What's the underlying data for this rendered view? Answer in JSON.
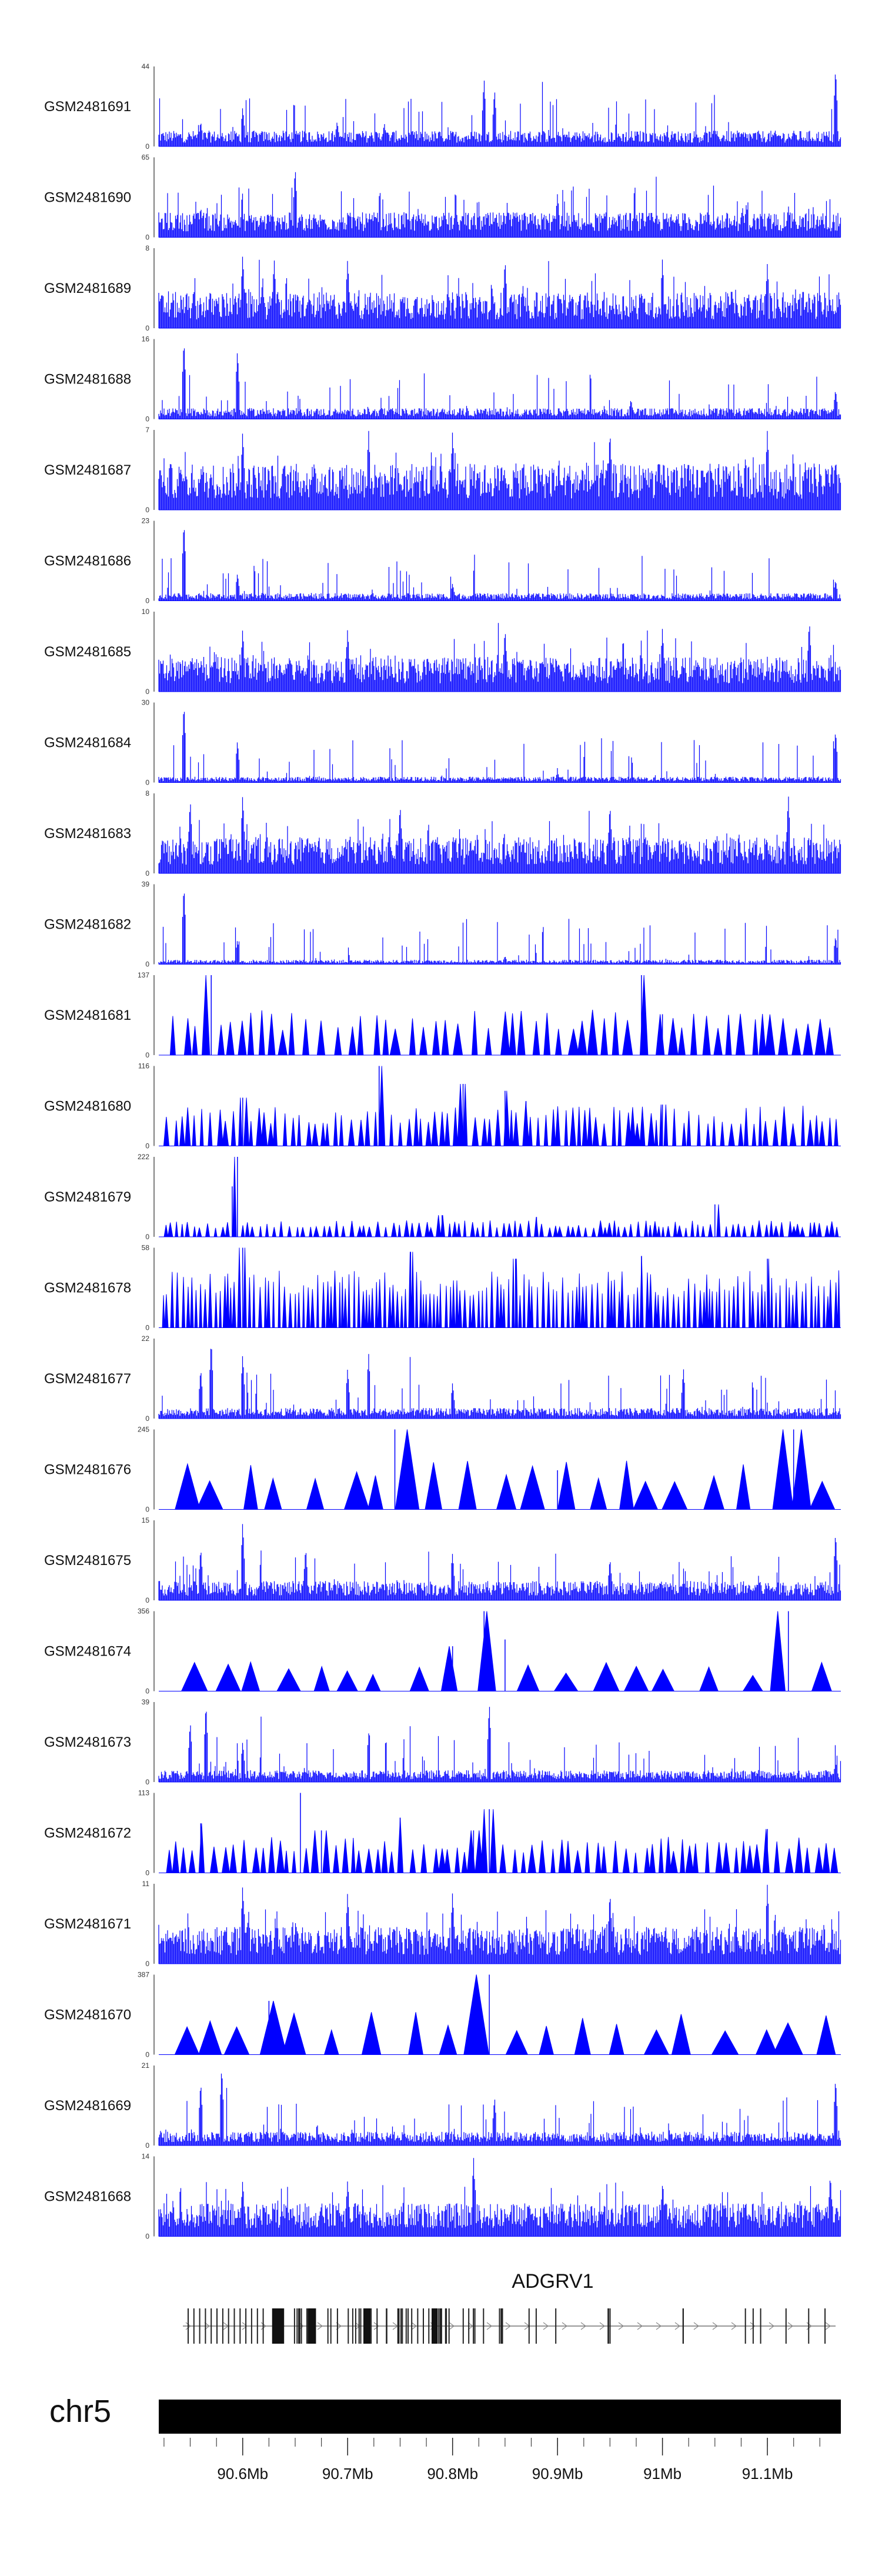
{
  "chart_data": {
    "type": "area",
    "title": "",
    "region": {
      "start": 90.52,
      "end": 91.17,
      "unit": "Mb"
    },
    "colors": {
      "signal": "#0000ff",
      "gene": "#555555",
      "ideogram": "#000000"
    },
    "tracks": [
      {
        "name": "GSM2481691",
        "ymax": 44,
        "style": "dense",
        "base": 6,
        "peaks": [
          [
            90.56,
            14
          ],
          [
            90.6,
            22
          ],
          [
            90.69,
            14
          ],
          [
            90.735,
            13
          ],
          [
            90.83,
            38
          ],
          [
            90.84,
            32
          ],
          [
            91.165,
            44
          ]
        ]
      },
      {
        "name": "GSM2481690",
        "ymax": 65,
        "style": "dense",
        "base": 14,
        "peaks": [
          [
            90.56,
            25
          ],
          [
            90.65,
            58
          ],
          [
            90.9,
            36
          ],
          [
            91.08,
            28
          ],
          [
            91.12,
            26
          ]
        ]
      },
      {
        "name": "GSM2481689",
        "ymax": 8,
        "style": "dense",
        "base": 2.5,
        "peaks": [
          [
            90.6,
            7.5
          ],
          [
            90.63,
            7
          ],
          [
            90.7,
            7
          ],
          [
            90.85,
            7
          ],
          [
            91.0,
            7
          ],
          [
            91.1,
            6.5
          ]
        ]
      },
      {
        "name": "GSM2481688",
        "ymax": 16,
        "style": "dense",
        "base": 1.5,
        "peaks": [
          [
            90.544,
            16
          ],
          [
            90.595,
            14
          ],
          [
            90.97,
            4
          ],
          [
            91.165,
            6
          ]
        ]
      },
      {
        "name": "GSM2481687",
        "ymax": 7,
        "style": "dense",
        "base": 2.8,
        "peaks": [
          [
            90.6,
            7
          ],
          [
            90.72,
            7
          ],
          [
            90.8,
            7
          ],
          [
            90.95,
            7
          ],
          [
            91.1,
            7
          ]
        ]
      },
      {
        "name": "GSM2481686",
        "ymax": 23,
        "style": "dense",
        "base": 1.5,
        "peaks": [
          [
            90.544,
            23
          ],
          [
            90.595,
            8
          ],
          [
            90.8,
            5
          ],
          [
            91.165,
            6
          ]
        ]
      },
      {
        "name": "GSM2481685",
        "ymax": 10,
        "style": "dense",
        "base": 3,
        "peaks": [
          [
            90.6,
            8
          ],
          [
            90.7,
            8
          ],
          [
            90.85,
            8
          ],
          [
            91.0,
            8
          ],
          [
            91.14,
            9
          ]
        ]
      },
      {
        "name": "GSM2481684",
        "ymax": 30,
        "style": "dense",
        "base": 1.5,
        "peaks": [
          [
            90.544,
            30
          ],
          [
            90.595,
            16
          ],
          [
            90.9,
            4
          ],
          [
            91.165,
            20
          ]
        ]
      },
      {
        "name": "GSM2481683",
        "ymax": 8,
        "style": "dense",
        "base": 2.5,
        "peaks": [
          [
            90.55,
            7.5
          ],
          [
            90.6,
            8
          ],
          [
            90.75,
            7
          ],
          [
            90.95,
            7
          ],
          [
            91.12,
            8
          ]
        ]
      },
      {
        "name": "GSM2481682",
        "ymax": 39,
        "style": "dense",
        "base": 1.5,
        "peaks": [
          [
            90.544,
            39
          ],
          [
            90.595,
            12
          ],
          [
            90.85,
            4
          ],
          [
            91.165,
            14
          ]
        ]
      },
      {
        "name": "GSM2481681",
        "ymax": 137,
        "style": "sparse",
        "base": 60,
        "spacing": 0.011,
        "peaks": [
          [
            90.565,
            125
          ],
          [
            90.57,
            137
          ],
          [
            90.98,
            137
          ],
          [
            91.0,
            70
          ]
        ]
      },
      {
        "name": "GSM2481680",
        "ymax": 116,
        "style": "sparse",
        "base": 45,
        "spacing": 0.0065,
        "peaks": [
          [
            90.6,
            70
          ],
          [
            90.73,
            116
          ],
          [
            90.81,
            90
          ],
          [
            90.85,
            80
          ],
          [
            90.87,
            65
          ],
          [
            91.0,
            60
          ]
        ]
      },
      {
        "name": "GSM2481679",
        "ymax": 222,
        "style": "sparse",
        "base": 35,
        "spacing": 0.0055,
        "peaks": [
          [
            90.595,
            222
          ],
          [
            90.59,
            140
          ],
          [
            90.79,
            60
          ],
          [
            90.88,
            55
          ],
          [
            91.05,
            90
          ]
        ]
      },
      {
        "name": "GSM2481678",
        "ymax": 58,
        "style": "sparse",
        "base": 32,
        "spacing": 0.004,
        "peaks": [
          [
            90.6,
            58
          ],
          [
            90.76,
            55
          ],
          [
            90.86,
            50
          ],
          [
            90.98,
            52
          ],
          [
            91.1,
            50
          ]
        ]
      },
      {
        "name": "GSM2481677",
        "ymax": 22,
        "style": "dense",
        "base": 2,
        "peaks": [
          [
            90.56,
            14
          ],
          [
            90.57,
            22
          ],
          [
            90.6,
            18
          ],
          [
            90.7,
            14
          ],
          [
            90.72,
            18
          ],
          [
            90.8,
            10
          ],
          [
            91.02,
            14
          ]
        ]
      },
      {
        "name": "GSM2481676",
        "ymax": 245,
        "style": "sparse",
        "base": 120,
        "spacing": 0.028,
        "peaks": [
          [
            90.745,
            245
          ],
          [
            90.9,
            120
          ],
          [
            91.125,
            245
          ]
        ]
      },
      {
        "name": "GSM2481675",
        "ymax": 15,
        "style": "dense",
        "base": 2.5,
        "peaks": [
          [
            90.56,
            10
          ],
          [
            90.6,
            15
          ],
          [
            90.66,
            10
          ],
          [
            90.8,
            9
          ],
          [
            90.95,
            8
          ],
          [
            91.165,
            13
          ]
        ]
      },
      {
        "name": "GSM2481674",
        "ymax": 356,
        "style": "sparse",
        "base": 100,
        "spacing": 0.03,
        "peaks": [
          [
            90.83,
            356
          ],
          [
            90.85,
            230
          ],
          [
            91.12,
            356
          ],
          [
            90.8,
            200
          ]
        ]
      },
      {
        "name": "GSM2481673",
        "ymax": 39,
        "style": "dense",
        "base": 4,
        "peaks": [
          [
            90.55,
            30
          ],
          [
            90.565,
            39
          ],
          [
            90.6,
            20
          ],
          [
            90.72,
            24
          ],
          [
            90.835,
            39
          ],
          [
            91.165,
            10
          ]
        ]
      },
      {
        "name": "GSM2481672",
        "ymax": 113,
        "style": "sparse",
        "base": 40,
        "spacing": 0.008,
        "peaks": [
          [
            90.56,
            70
          ],
          [
            90.655,
            113
          ],
          [
            90.675,
            60
          ],
          [
            90.75,
            78
          ],
          [
            90.835,
            90
          ],
          [
            90.82,
            60
          ],
          [
            91.1,
            62
          ]
        ]
      },
      {
        "name": "GSM2481671",
        "ymax": 11,
        "style": "dense",
        "base": 3.5,
        "peaks": [
          [
            90.6,
            11
          ],
          [
            90.7,
            10
          ],
          [
            90.8,
            10
          ],
          [
            90.95,
            10
          ],
          [
            91.1,
            11
          ]
        ]
      },
      {
        "name": "GSM2481670",
        "ymax": 387,
        "style": "sparse",
        "base": 160,
        "spacing": 0.03,
        "peaks": [
          [
            90.625,
            260
          ],
          [
            90.835,
            387
          ],
          [
            90.63,
            200
          ]
        ]
      },
      {
        "name": "GSM2481669",
        "ymax": 21,
        "style": "dense",
        "base": 2.5,
        "peaks": [
          [
            90.56,
            17
          ],
          [
            90.58,
            21
          ],
          [
            90.84,
            13
          ],
          [
            91.165,
            18
          ]
        ]
      },
      {
        "name": "GSM2481668",
        "ymax": 14,
        "style": "dense",
        "base": 4,
        "peaks": [
          [
            90.6,
            10
          ],
          [
            90.7,
            10
          ],
          [
            90.82,
            14
          ],
          [
            91.0,
            9
          ],
          [
            91.16,
            11
          ]
        ]
      }
    ],
    "gene": {
      "name": "ADGRV1",
      "start": 90.543,
      "end": 91.165,
      "strand": "+"
    },
    "chromosome": {
      "name": "chr5"
    },
    "x_ticks": [
      "90.6Mb",
      "90.7Mb",
      "90.8Mb",
      "90.9Mb",
      "91Mb",
      "91.1Mb"
    ],
    "x_tick_values": [
      90.6,
      90.7,
      90.8,
      90.9,
      91.0,
      91.1
    ],
    "y_min_label": "0"
  }
}
